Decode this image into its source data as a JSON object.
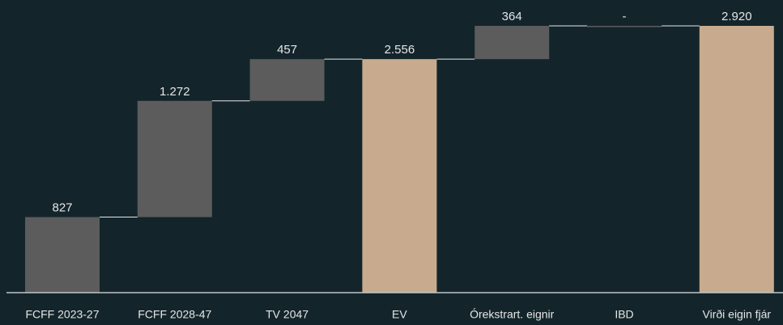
{
  "chart_data": {
    "type": "waterfall",
    "categories": [
      "FCFF 2023-27",
      "FCFF 2028-47",
      "TV 2047",
      "EV",
      "Órekstrart. eignir",
      "IBD",
      "Virði eigin fjár"
    ],
    "values": [
      827,
      1272,
      457,
      2556,
      364,
      0,
      2920
    ],
    "value_labels": [
      "827",
      "1.272",
      "457",
      "2.556",
      "364",
      "-",
      "2.920"
    ],
    "totals": [
      false,
      false,
      false,
      true,
      false,
      false,
      true
    ],
    "color": "#5c5c5c",
    "total_color": "#c8ab8e",
    "ylim": [
      0,
      2920
    ]
  }
}
